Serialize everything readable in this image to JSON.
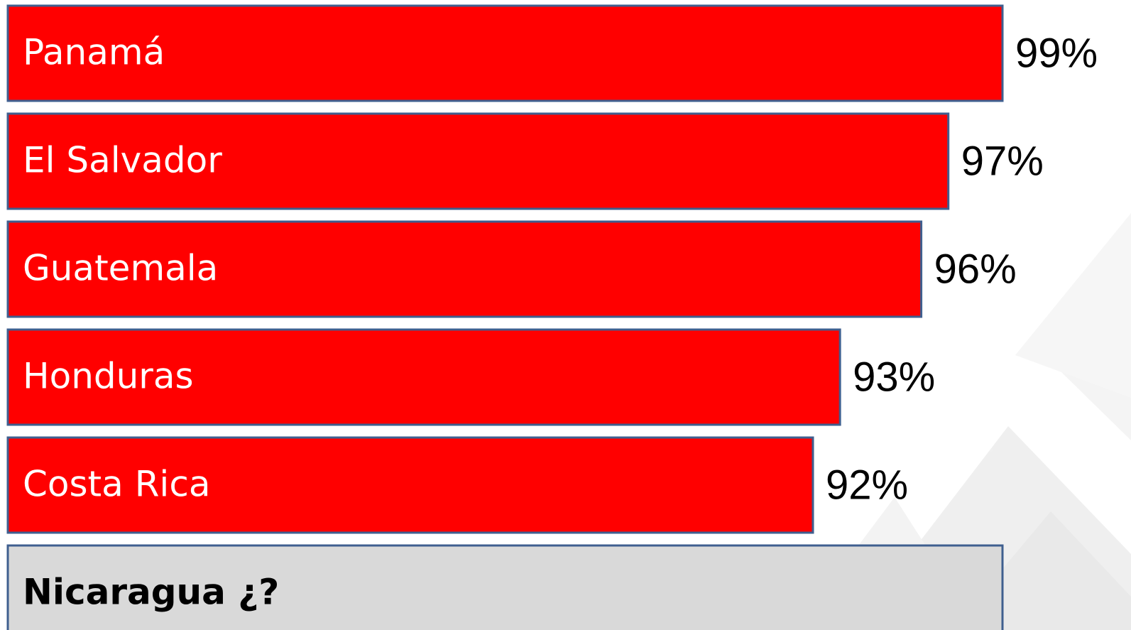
{
  "chart_data": {
    "type": "bar",
    "orientation": "horizontal",
    "categories": [
      "Panamá",
      "El Salvador",
      "Guatemala",
      "Honduras",
      "Costa Rica",
      "Nicaragua ¿?"
    ],
    "values": [
      99,
      97,
      96,
      93,
      92,
      null
    ],
    "value_labels": [
      "99%",
      "97%",
      "96%",
      "93%",
      "92%",
      null
    ],
    "color": "#ff0000",
    "unknown_color": "#d9d9d9",
    "border_color": "#3f5f8f"
  }
}
